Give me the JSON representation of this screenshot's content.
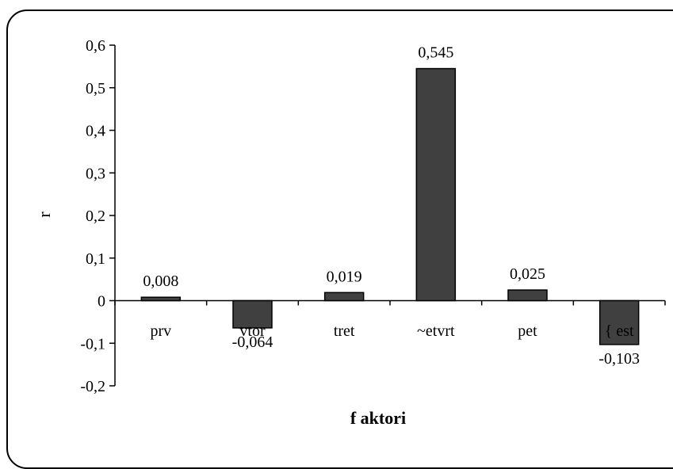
{
  "chart_data": {
    "type": "bar",
    "title": "",
    "xlabel": "f aktori",
    "ylabel": "r",
    "ylim": [
      -0.2,
      0.6
    ],
    "yticks": [
      "0,6",
      "0,5",
      "0,4",
      "0,3",
      "0,2",
      "0,1",
      "0",
      "-0,1",
      "-0,2"
    ],
    "ytick_values": [
      0.6,
      0.5,
      0.4,
      0.3,
      0.2,
      0.1,
      0,
      -0.1,
      -0.2
    ],
    "categories": [
      "prv",
      "vtor",
      "tret",
      "~etvrt",
      "pet",
      "{ est"
    ],
    "values": [
      0.008,
      -0.064,
      0.019,
      0.545,
      0.025,
      -0.103
    ],
    "data_labels": [
      "0,008",
      "-0,064",
      "0,019",
      "0,545",
      "0,025",
      "-0,103"
    ],
    "bar_color": "#404040",
    "grid": false,
    "legend": "none"
  }
}
